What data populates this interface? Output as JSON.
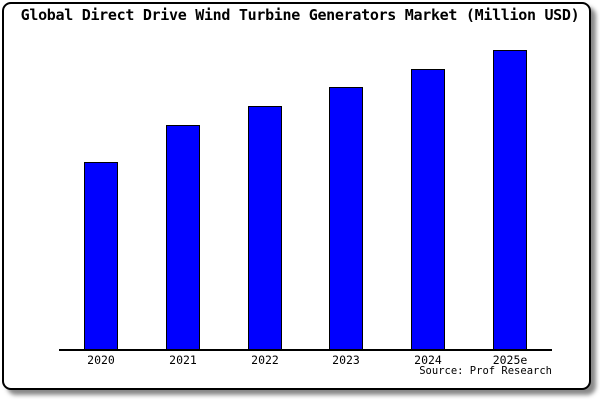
{
  "chart_data": {
    "type": "bar",
    "title": "Global Direct Drive Wind Turbine Generators Market (Million USD)",
    "categories": [
      "2020",
      "2021",
      "2022",
      "2023",
      "2024",
      "2025e"
    ],
    "values": [
      188,
      225,
      244,
      263,
      281,
      300
    ],
    "values_note": "y-axis has no ticks or labels; values are relative bar heights measured in pixels from the baseline",
    "xlabel": "",
    "ylabel": "",
    "ylim": [
      0,
      320
    ],
    "grid": false,
    "legend": "none",
    "bar_color": "#0000ff",
    "bar_border_color": "#000000",
    "source_label": "Source: Prof Research"
  },
  "colors": {
    "background": "#ffffff",
    "frame_border": "#000000",
    "shadow": "#666666",
    "text": "#000000"
  }
}
